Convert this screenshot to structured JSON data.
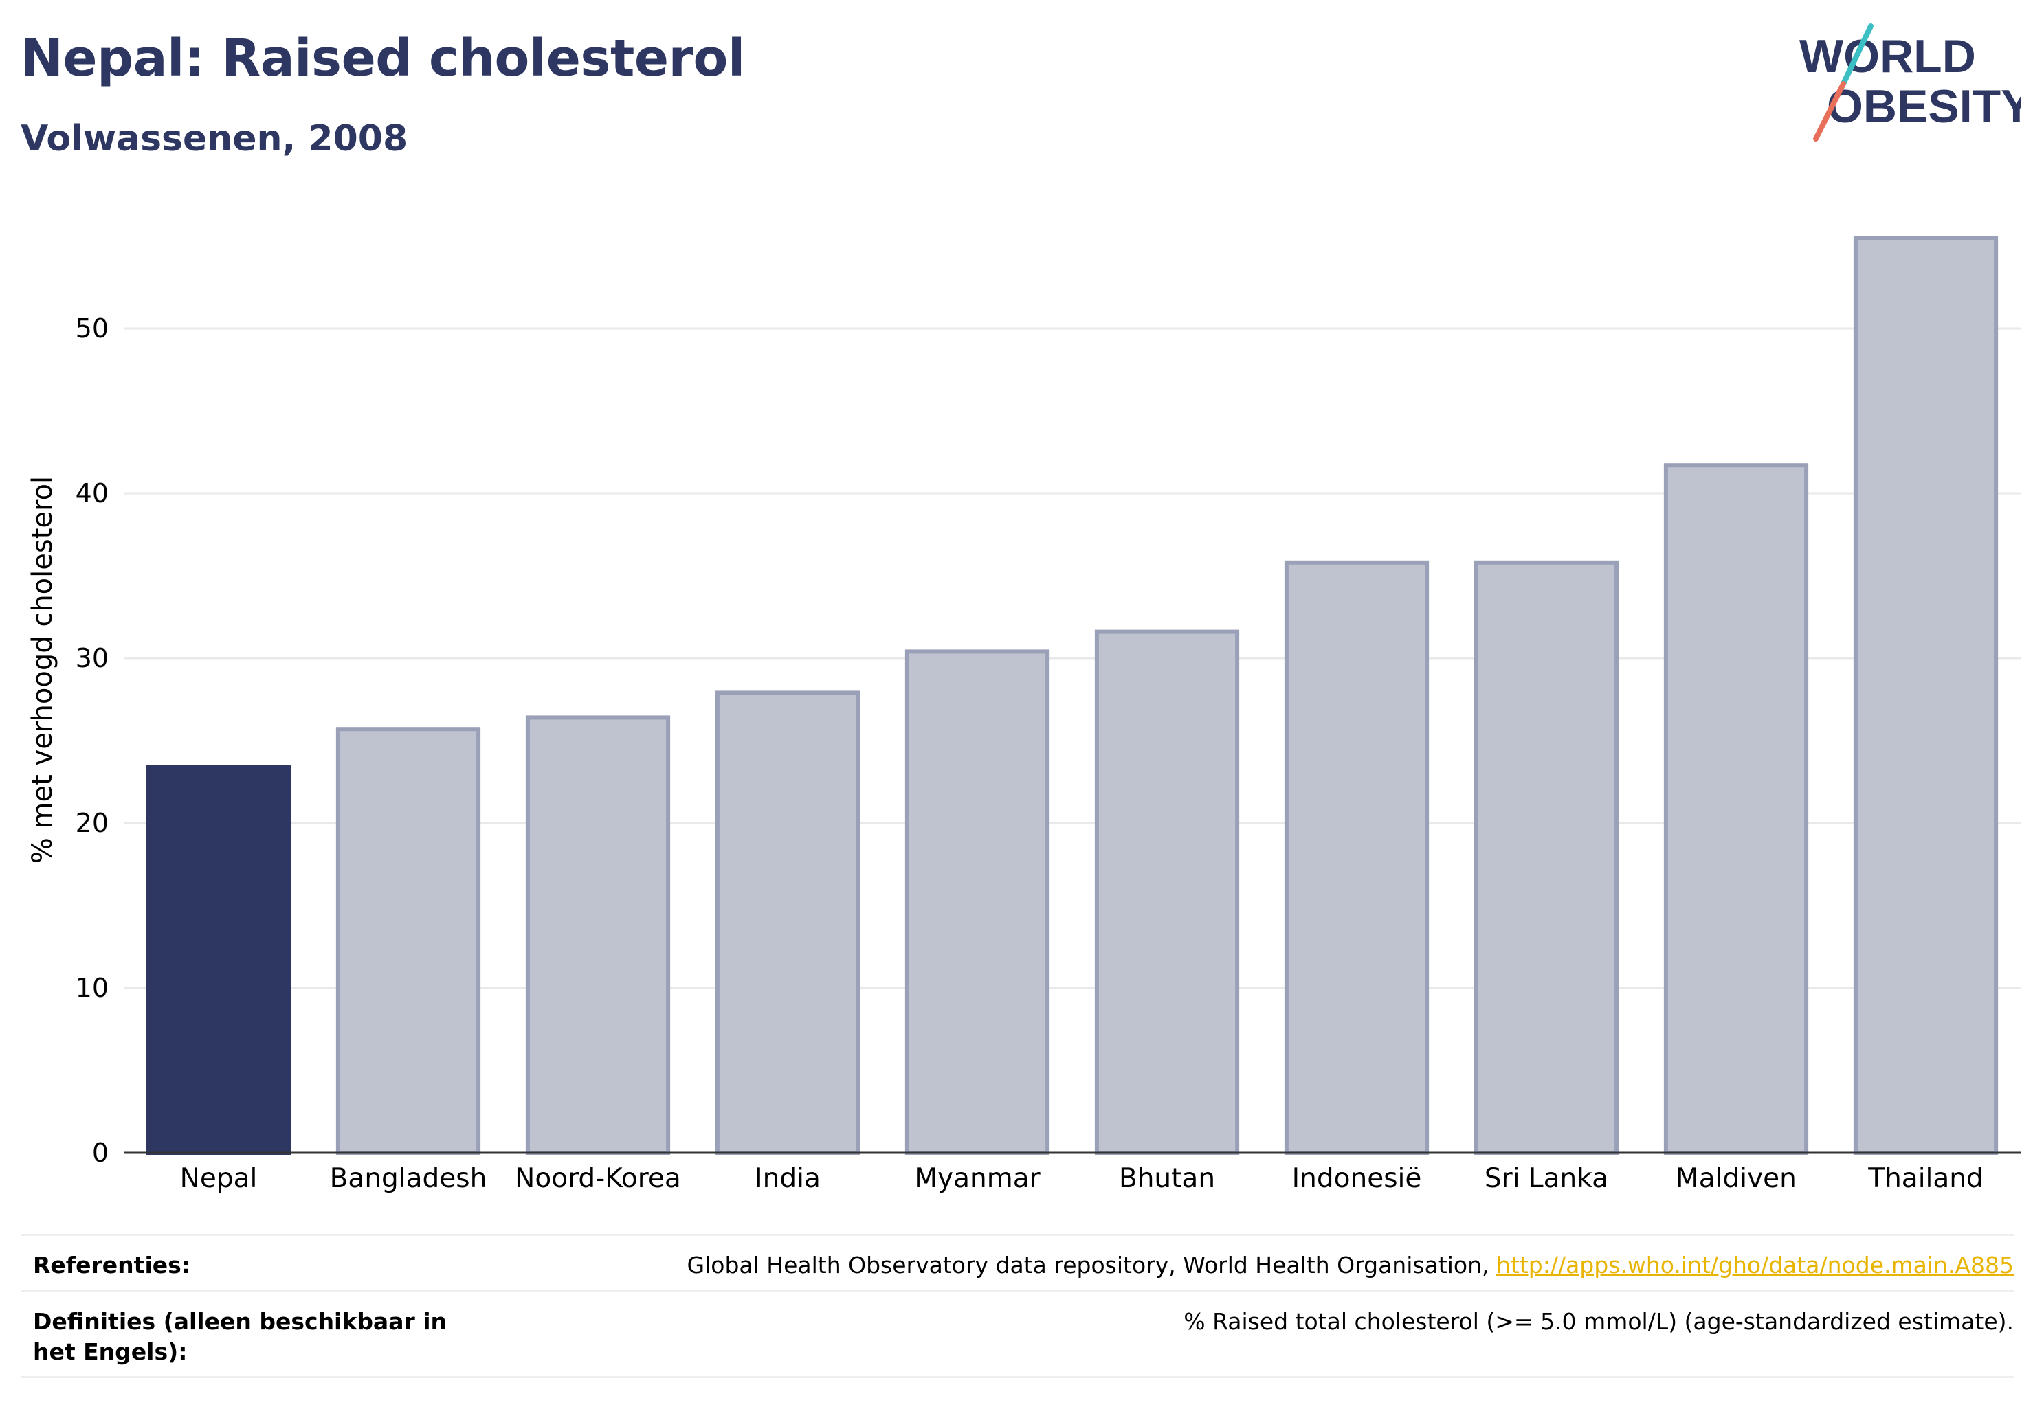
{
  "header": {
    "title": "Nepal: Raised cholesterol",
    "subtitle": "Volwassenen, 2008"
  },
  "logo": {
    "line1": "WORLD",
    "line2": "OBESITY",
    "colors": {
      "text": "#2d3761",
      "slash_top": "#3bbfc4",
      "slash_bottom": "#e8705b"
    }
  },
  "colors": {
    "highlight": "#2d3761",
    "bar_fill": "#bfc3d0",
    "bar_stroke": "#9aa0b8",
    "grid": "#e9e9e9",
    "axis": "#333333",
    "link": "#e8b400"
  },
  "chart_data": {
    "type": "bar",
    "title": "Nepal: Raised cholesterol",
    "subtitle": "Volwassenen, 2008",
    "ylabel": "% met verhoogd cholesterol",
    "xlabel": "",
    "ylim": [
      0,
      56
    ],
    "yticks": [
      0,
      10,
      20,
      30,
      40,
      50
    ],
    "grid": true,
    "legend": "none",
    "highlight_index": 0,
    "categories": [
      "Nepal",
      "Bangladesh",
      "Noord-Korea",
      "India",
      "Myanmar",
      "Bhutan",
      "Indonesië",
      "Sri Lanka",
      "Maldiven",
      "Thailand"
    ],
    "values": [
      23.4,
      25.7,
      26.4,
      27.9,
      30.4,
      31.6,
      35.8,
      35.8,
      41.7,
      55.5
    ]
  },
  "footer": {
    "references_label": "Referenties:",
    "references_text": "Global Health Observatory data repository, World Health Organisation, ",
    "references_link": "http://apps.who.int/gho/data/node.main.A885",
    "definitions_label": "Definities (alleen beschikbaar in het Engels):",
    "definitions_text": "% Raised total cholesterol (>= 5.0 mmol/L) (age-standardized estimate)."
  }
}
